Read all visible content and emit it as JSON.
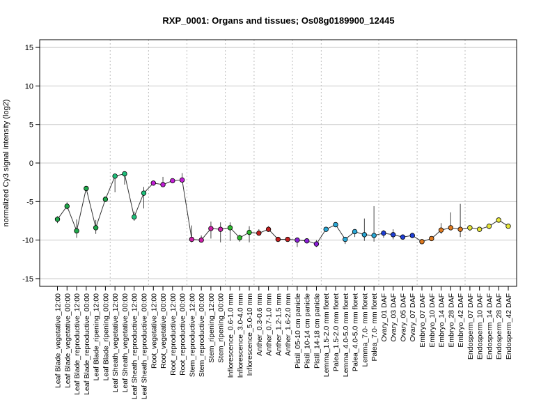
{
  "chart_data": {
    "type": "line",
    "title": "RXP_0001: Organs and tissues; Os08g0189900_12445",
    "xlabel": "",
    "ylabel": "normalized Cy3 signal intensity (log2)",
    "ylim": [
      -16,
      16
    ],
    "yticks": [
      -15,
      -10,
      -5,
      0,
      5,
      10,
      15
    ],
    "grid": true,
    "categories": [
      "Leaf Blade_vegetative_12:00",
      "Leaf Blade_vegetative_00:00",
      "Leaf Blade_reproductive_12:00",
      "Leaf Blade_reproductive_00:00",
      "Leaf Blade_ripening_12:00",
      "Leaf Blade_ripening_00:00",
      "Leaf Sheath_vegetative_12:00",
      "Leaf Sheath_vegetative_00:00",
      "Leaf Sheath_reproductive_12:00",
      "Leaf Sheath_reproductive_00:00",
      "Root_vegetative_12:00",
      "Root_vegetative_00:00",
      "Root_reproductive_12:00",
      "Root_reproductive_00:00",
      "Stem_reproductive_12:00",
      "Stem_reproductive_00:00",
      "Stem_ripening_12:00",
      "Stem_ripening_00:00",
      "Inflorescence_0.6-1.0 mm",
      "Inflorescence_3.0-4.0 mm",
      "Inflorescence_5.0-10 mm",
      "Anther_0.3-0.6 mm",
      "Anther_0.7-1.0 mm",
      "Anther_1.2-1.5 mm",
      "Anther_1.6-2.0 mm",
      "Pistil_05-10 cm panicle",
      "Pistil_10-14 cm panicle",
      "Pistil_14-18 cm panicle",
      "Lemma_1.5-2.0 mm floret",
      "Palea_1.5-2.0 mm floret",
      "Lemma_4.0-5.0 mm floret",
      "Palea_4.0-5.0 mm floret",
      "Lemma_7.0- mm floret",
      "Palea_7.0- mm floret",
      "Ovary_01 DAF",
      "Ovary_03 DAF",
      "Ovary_05 DAF",
      "Ovary_07 DAF",
      "Embryo_07 DAF",
      "Embryo_10 DAF",
      "Embryo_14 DAF",
      "Embryo_28 DAF",
      "Embryo_42 DAF",
      "Endosperm_07 DAF",
      "Endosperm_10 DAF",
      "Endosperm_14 DAF",
      "Endosperm_28 DAF",
      "Endosperm_42 DAF"
    ],
    "values": [
      -7.3,
      -5.6,
      -8.8,
      -3.3,
      -8.4,
      -4.7,
      -1.7,
      -1.4,
      -7.0,
      -3.9,
      -2.6,
      -2.8,
      -2.3,
      -2.2,
      -9.9,
      -10.0,
      -8.5,
      -8.6,
      -8.4,
      -9.7,
      -9.0,
      -9.1,
      -8.6,
      -9.9,
      -9.9,
      -10.0,
      -10.1,
      -10.5,
      -8.6,
      -8.0,
      -9.9,
      -8.9,
      -9.3,
      -9.4,
      -9.1,
      -9.3,
      -9.6,
      -9.4,
      -10.2,
      -9.8,
      -8.7,
      -8.4,
      -8.6,
      -8.4,
      -8.6,
      -8.2,
      -7.4,
      -8.2
    ],
    "err_low": [
      -7.8,
      -6.0,
      -9.7,
      -3.5,
      -9.2,
      -5.0,
      -3.8,
      -2.8,
      -7.5,
      -5.9,
      -2.8,
      -3.0,
      -2.6,
      -2.5,
      -10.3,
      -10.3,
      -9.8,
      -10.3,
      -10.1,
      -10.2,
      -10.3,
      -9.4,
      -8.9,
      -10.1,
      -10.1,
      -10.9,
      -10.4,
      -10.9,
      -8.9,
      -8.3,
      -10.5,
      -9.6,
      -10.1,
      -10.2,
      -9.7,
      -9.9,
      -9.9,
      -9.7,
      -10.4,
      -10.1,
      -9.2,
      -8.7,
      -9.6,
      -8.8,
      -8.9,
      -8.6,
      -7.7,
      -8.5
    ],
    "err_high": [
      -6.9,
      -5.1,
      -7.3,
      -3.1,
      -7.4,
      -4.4,
      -1.4,
      -1.2,
      -6.3,
      -3.1,
      -2.4,
      -1.8,
      -2.0,
      -1.3,
      -8.1,
      -9.4,
      -7.6,
      -7.7,
      -7.7,
      -9.3,
      -8.2,
      -8.6,
      -8.2,
      -9.7,
      -9.7,
      -9.8,
      -9.9,
      -10.0,
      -8.3,
      -7.7,
      -9.6,
      -8.6,
      -7.2,
      -5.6,
      -8.7,
      -8.6,
      -9.4,
      -9.1,
      -10.0,
      -9.6,
      -7.8,
      -6.4,
      -5.3,
      -8.1,
      -8.4,
      -7.9,
      -7.1,
      -7.9
    ],
    "colors": [
      "#1fa84a",
      "#1fa84a",
      "#1fa84a",
      "#1fa84a",
      "#1fa84a",
      "#1fa84a",
      "#1fbf7a",
      "#1fbf7a",
      "#1fbf7a",
      "#1fbf7a",
      "#c21fd6",
      "#c21fd6",
      "#c21fd6",
      "#c21fd6",
      "#cc1fa8",
      "#cc1fa8",
      "#cc1fa8",
      "#cc1fa8",
      "#2eb82e",
      "#2eb82e",
      "#2eb82e",
      "#c21f1f",
      "#c21f1f",
      "#c21f1f",
      "#c21f1f",
      "#8a1fd6",
      "#8a1fd6",
      "#8a1fd6",
      "#2aa8d6",
      "#2aa8d6",
      "#2aa8d6",
      "#2aa8d6",
      "#2aa8d6",
      "#2aa8d6",
      "#1f3fd6",
      "#1f3fd6",
      "#1f3fd6",
      "#1f3fd6",
      "#e07a1f",
      "#e07a1f",
      "#e07a1f",
      "#e07a1f",
      "#e07a1f",
      "#e6e63a",
      "#e6e63a",
      "#e6e63a",
      "#e6e63a",
      "#e6e63a"
    ],
    "vertical_separators_after": [
      6,
      10,
      14,
      18,
      21,
      25,
      28,
      34,
      38,
      43
    ]
  }
}
